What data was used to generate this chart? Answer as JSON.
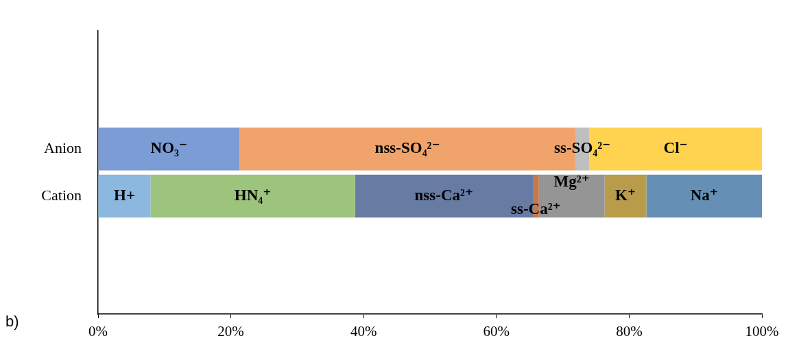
{
  "chart_data": {
    "type": "bar",
    "orientation": "horizontal",
    "stacked": true,
    "categories": [
      "Anion",
      "Cation"
    ],
    "series": [
      {
        "name": "NO₃⁻",
        "color": "#7b9cd4",
        "values": [
          21.3,
          null
        ]
      },
      {
        "name": "nss-SO₄²⁻",
        "color": "#f0a46c",
        "values": [
          50.6,
          null
        ]
      },
      {
        "name": "ss-SO₄²⁻",
        "color": "#bfbfbf",
        "values": [
          2.1,
          null
        ]
      },
      {
        "name": "Cl⁻",
        "color": "#ffd24f",
        "values": [
          26.0,
          null
        ]
      },
      {
        "name": "H+",
        "color": "#8cb8e0",
        "values": [
          null,
          7.9
        ]
      },
      {
        "name": "HN₄⁺",
        "color": "#9cc47c",
        "values": [
          null,
          30.8
        ]
      },
      {
        "name": "nss-Ca²⁺",
        "color": "#687ba3",
        "values": [
          null,
          26.8
        ]
      },
      {
        "name": "ss-Ca²⁺",
        "color": "#c07a4c",
        "values": [
          null,
          0.9
        ]
      },
      {
        "name": "Mg²⁺",
        "color": "#959595",
        "values": [
          null,
          9.9
        ]
      },
      {
        "name": "K⁺",
        "color": "#b89c4c",
        "values": [
          null,
          6.3
        ]
      },
      {
        "name": "Na⁺",
        "color": "#668fb5",
        "values": [
          null,
          17.4
        ]
      }
    ],
    "xlim": [
      0,
      100
    ],
    "xticks": [
      {
        "value": 0,
        "label": "0%"
      },
      {
        "value": 20,
        "label": "20%"
      },
      {
        "value": 40,
        "label": "40%"
      },
      {
        "value": 60,
        "label": "60%"
      },
      {
        "value": 80,
        "label": "80%"
      },
      {
        "value": 100,
        "label": "100%"
      }
    ],
    "grid": false,
    "legend": false,
    "annotations": [
      "b)"
    ]
  }
}
